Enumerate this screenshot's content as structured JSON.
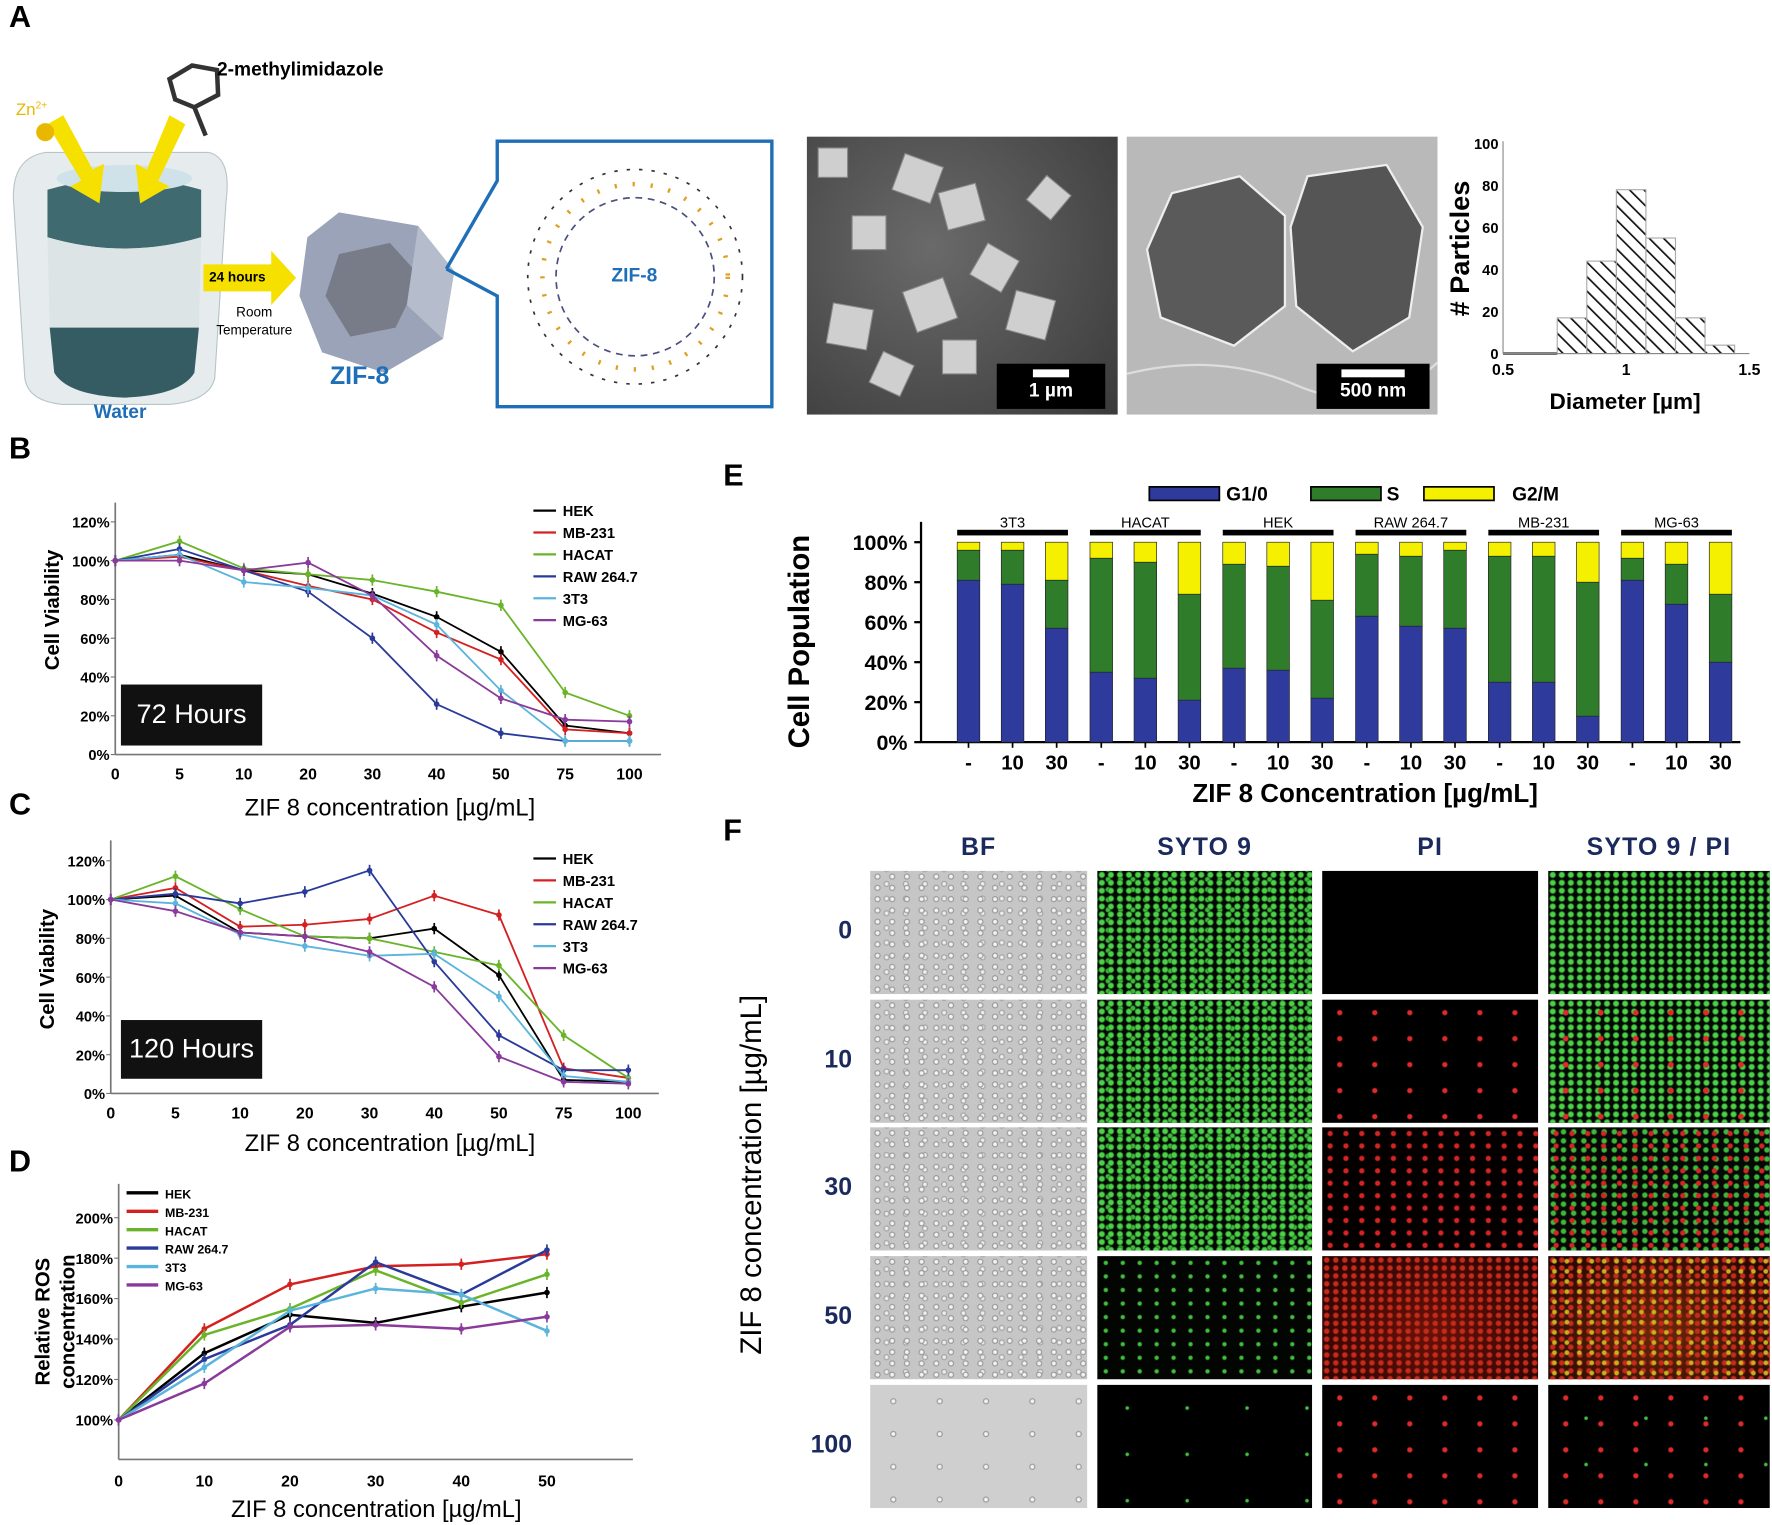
{
  "panel_labels": {
    "a": "A",
    "b": "B",
    "c": "C",
    "d": "D",
    "e": "E",
    "f": "F"
  },
  "panel_a": {
    "zn_label": "Zn",
    "zn_charge": "2+",
    "ligand_label": "2-methylimidazole",
    "arrow_label": "24 hours",
    "condition_line1": "Room",
    "condition_line2": "Temperature",
    "water_label": "Water",
    "crystal_label": "ZIF-8",
    "structure_label": "ZIF-8",
    "sem_scale_bar": "1 µm",
    "tem_scale_bar": "500 nm",
    "colors": {
      "arrow": "#f5e000",
      "zinc": "#e8b800",
      "label_blue": "#1f6fb8",
      "water": "#2f5a60"
    }
  },
  "chart_data": [
    {
      "id": "A-histogram",
      "type": "bar",
      "subtype": "histogram",
      "bin_edges": [
        0.72,
        0.84,
        0.96,
        1.08,
        1.2,
        1.32,
        1.44
      ],
      "values": [
        17,
        44,
        78,
        55,
        17,
        4
      ],
      "xlabel": "Diameter [µm]",
      "ylabel": "# Particles",
      "xlim": [
        0.5,
        1.5
      ],
      "ylim": [
        0,
        100
      ],
      "xticks": [
        {
          "v": 0.5,
          "label": "0.5"
        },
        {
          "v": 1,
          "label": "1"
        },
        {
          "v": 1.5,
          "label": "1.5"
        }
      ],
      "yticks": [
        {
          "v": 0,
          "label": "0"
        },
        {
          "v": 20,
          "label": "20"
        },
        {
          "v": 40,
          "label": "40"
        },
        {
          "v": 60,
          "label": "60"
        },
        {
          "v": 80,
          "label": "80"
        },
        {
          "v": 100,
          "label": "100"
        }
      ],
      "fill": "hatched"
    },
    {
      "id": "B",
      "type": "line",
      "categories": [
        "0",
        "5",
        "10",
        "20",
        "30",
        "40",
        "50",
        "75",
        "100"
      ],
      "series": [
        {
          "name": "HEK",
          "color": "#000000",
          "values": [
            100,
            103,
            95,
            93,
            83,
            71,
            53,
            15,
            11
          ]
        },
        {
          "name": "MB-231",
          "color": "#d42020",
          "values": [
            100,
            102,
            95,
            87,
            80,
            63,
            49,
            13,
            11
          ]
        },
        {
          "name": "HACAT",
          "color": "#6ab42a",
          "values": [
            100,
            110,
            96,
            93,
            90,
            84,
            77,
            32,
            20
          ]
        },
        {
          "name": "RAW 264.7",
          "color": "#2a3a9a",
          "values": [
            100,
            106,
            95,
            84,
            60,
            26,
            11,
            7,
            7
          ]
        },
        {
          "name": "3T3",
          "color": "#5ab4dc",
          "values": [
            100,
            103,
            89,
            86,
            82,
            67,
            33,
            7,
            7
          ]
        },
        {
          "name": "MG-63",
          "color": "#8a3a9a",
          "values": [
            100,
            100,
            95,
            99,
            82,
            51,
            29,
            18,
            17
          ]
        }
      ],
      "xlabel": "ZIF 8 concentration [µg/mL]",
      "ylabel": "Cell Viability",
      "ylim": [
        0,
        120
      ],
      "yticks": [
        {
          "v": 0,
          "label": "0%"
        },
        {
          "v": 20,
          "label": "20%"
        },
        {
          "v": 40,
          "label": "40%"
        },
        {
          "v": 60,
          "label": "60%"
        },
        {
          "v": 80,
          "label": "80%"
        },
        {
          "v": 100,
          "label": "100%"
        },
        {
          "v": 120,
          "label": "120%"
        }
      ],
      "annotation": "72 Hours",
      "legend": "top-right",
      "error_bars": true
    },
    {
      "id": "C",
      "type": "line",
      "categories": [
        "0",
        "5",
        "10",
        "20",
        "30",
        "40",
        "50",
        "75",
        "100"
      ],
      "series": [
        {
          "name": "HEK",
          "color": "#000000",
          "values": [
            100,
            102,
            83,
            81,
            80,
            85,
            61,
            7,
            6
          ]
        },
        {
          "name": "MB-231",
          "color": "#d42020",
          "values": [
            100,
            106,
            86,
            87,
            90,
            102,
            92,
            13,
            8
          ]
        },
        {
          "name": "HACAT",
          "color": "#6ab42a",
          "values": [
            100,
            112,
            95,
            81,
            80,
            73,
            66,
            30,
            8
          ]
        },
        {
          "name": "RAW 264.7",
          "color": "#2a3a9a",
          "values": [
            100,
            103,
            98,
            104,
            115,
            68,
            30,
            12,
            12
          ]
        },
        {
          "name": "3T3",
          "color": "#5ab4dc",
          "values": [
            100,
            98,
            82,
            76,
            71,
            72,
            50,
            9,
            6
          ]
        },
        {
          "name": "MG-63",
          "color": "#8a3a9a",
          "values": [
            100,
            94,
            83,
            81,
            73,
            55,
            19,
            6,
            5
          ]
        }
      ],
      "xlabel": "ZIF 8 concentration [µg/mL]",
      "ylabel": "Cell Viability",
      "ylim": [
        0,
        120
      ],
      "yticks": [
        {
          "v": 0,
          "label": "0%"
        },
        {
          "v": 20,
          "label": "20%"
        },
        {
          "v": 40,
          "label": "40%"
        },
        {
          "v": 60,
          "label": "60%"
        },
        {
          "v": 80,
          "label": "80%"
        },
        {
          "v": 100,
          "label": "100%"
        },
        {
          "v": 120,
          "label": "120%"
        }
      ],
      "annotation": "120 Hours",
      "legend": "top-right",
      "error_bars": true
    },
    {
      "id": "D",
      "type": "line",
      "x": [
        0,
        10,
        20,
        30,
        40,
        50
      ],
      "series": [
        {
          "name": "HEK",
          "color": "#000000",
          "values": [
            100,
            133,
            152,
            148,
            156,
            163
          ]
        },
        {
          "name": "MB-231",
          "color": "#d42020",
          "values": [
            100,
            145,
            167,
            176,
            177,
            182
          ]
        },
        {
          "name": "HACAT",
          "color": "#6ab42a",
          "values": [
            100,
            142,
            155,
            174,
            158,
            172
          ]
        },
        {
          "name": "RAW 264.7",
          "color": "#2a3a9a",
          "values": [
            100,
            130,
            147,
            178,
            162,
            184
          ]
        },
        {
          "name": "3T3",
          "color": "#5ab4dc",
          "values": [
            100,
            126,
            154,
            165,
            162,
            144
          ]
        },
        {
          "name": "MG-63",
          "color": "#8a3a9a",
          "values": [
            100,
            118,
            146,
            147,
            145,
            151
          ]
        }
      ],
      "xlabel": "ZIF 8 concentration [µg/mL]",
      "ylabel_line1": "Relative ROS",
      "ylabel_line2": "concentration",
      "xlim": [
        0,
        60
      ],
      "ylim": [
        80,
        213
      ],
      "xticks": [
        {
          "v": 0,
          "label": "0"
        },
        {
          "v": 10,
          "label": "10"
        },
        {
          "v": 20,
          "label": "20"
        },
        {
          "v": 30,
          "label": "30"
        },
        {
          "v": 40,
          "label": "40"
        },
        {
          "v": 50,
          "label": "50"
        }
      ],
      "yticks": [
        {
          "v": 100,
          "label": "100%"
        },
        {
          "v": 120,
          "label": "120%"
        },
        {
          "v": 140,
          "label": "140%"
        },
        {
          "v": 160,
          "label": "160%"
        },
        {
          "v": 180,
          "label": "180%"
        },
        {
          "v": 200,
          "label": "200%"
        }
      ],
      "legend": "top-left",
      "error_bars": true
    },
    {
      "id": "E",
      "type": "bar",
      "subtype": "stacked-100",
      "groups": [
        "3T3",
        "HACAT",
        "HEK",
        "RAW 264.7",
        "MB-231",
        "MG-63"
      ],
      "categories": [
        "-",
        "10",
        "30"
      ],
      "series": [
        {
          "name": "G1/0",
          "color": "#2e3a9c",
          "values": [
            [
              81,
              79,
              57
            ],
            [
              35,
              32,
              21
            ],
            [
              37,
              36,
              22
            ],
            [
              63,
              58,
              57
            ],
            [
              30,
              30,
              13
            ],
            [
              81,
              69,
              40
            ]
          ]
        },
        {
          "name": "S",
          "color": "#2f7d2a",
          "values": [
            [
              15,
              17,
              24
            ],
            [
              57,
              58,
              53
            ],
            [
              52,
              52,
              49
            ],
            [
              31,
              35,
              39
            ],
            [
              63,
              63,
              67
            ],
            [
              11,
              20,
              34
            ]
          ]
        },
        {
          "name": "G2/M",
          "color": "#f5f000",
          "values": [
            [
              4,
              4,
              19
            ],
            [
              8,
              10,
              26
            ],
            [
              11,
              12,
              29
            ],
            [
              6,
              7,
              4
            ],
            [
              7,
              7,
              20
            ],
            [
              8,
              11,
              26
            ]
          ]
        }
      ],
      "xlabel": "ZIF 8 Concentration [µg/mL]",
      "ylabel": "Cell Population",
      "ylim": [
        0,
        100
      ],
      "yticks": [
        {
          "v": 0,
          "label": "0%"
        },
        {
          "v": 20,
          "label": "20%"
        },
        {
          "v": 40,
          "label": "40%"
        },
        {
          "v": 60,
          "label": "60%"
        },
        {
          "v": 80,
          "label": "80%"
        },
        {
          "v": 100,
          "label": "100%"
        }
      ],
      "legend": "top"
    }
  ],
  "panel_f": {
    "column_headers": [
      "BF",
      "SYTO 9",
      "PI",
      "SYTO 9 / PI"
    ],
    "row_labels": [
      "0",
      "10",
      "30",
      "50",
      "100"
    ],
    "ylabel": "ZIF 8 concentration [µg/mL]"
  }
}
